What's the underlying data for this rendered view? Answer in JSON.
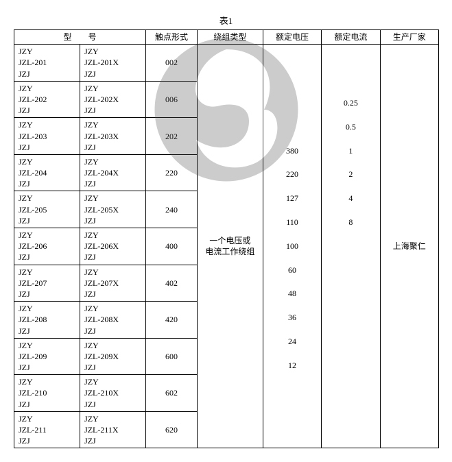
{
  "caption": "表1",
  "header": {
    "model": "型　　号",
    "contact": "触点形式",
    "winding": "绕组类型",
    "voltage": "额定电压",
    "current": "额定电流",
    "maker": "生产厂家"
  },
  "rows": [
    {
      "a": [
        "JZY",
        "JZL-201",
        "JZJ"
      ],
      "b": [
        "JZY",
        "JZL-201X",
        "JZJ"
      ],
      "contact": "002"
    },
    {
      "a": [
        "JZY",
        "JZL-202",
        "JZJ"
      ],
      "b": [
        "JZY",
        "JZL-202X",
        "JZJ"
      ],
      "contact": "006"
    },
    {
      "a": [
        "JZY",
        "JZL-203",
        "JZJ"
      ],
      "b": [
        "JZY",
        "JZL-203X",
        "JZJ"
      ],
      "contact": "202"
    },
    {
      "a": [
        "JZY",
        "JZL-204",
        "JZJ"
      ],
      "b": [
        "JZY",
        "JZL-204X",
        "JZJ"
      ],
      "contact": "220"
    },
    {
      "a": [
        "JZY",
        "JZL-205",
        "JZJ"
      ],
      "b": [
        "JZY",
        "JZL-205X",
        "JZJ"
      ],
      "contact": "240"
    },
    {
      "a": [
        "JZY",
        "JZL-206",
        "JZJ"
      ],
      "b": [
        "JZY",
        "JZL-206X",
        "JZJ"
      ],
      "contact": "400"
    },
    {
      "a": [
        "JZY",
        "JZL-207",
        "JZJ"
      ],
      "b": [
        "JZY",
        "JZL-207X",
        "JZJ"
      ],
      "contact": "402"
    },
    {
      "a": [
        "JZY",
        "JZL-208",
        "JZJ"
      ],
      "b": [
        "JZY",
        "JZL-208X",
        "JZJ"
      ],
      "contact": "420"
    },
    {
      "a": [
        "JZY",
        "JZL-209",
        "JZJ"
      ],
      "b": [
        "JZY",
        "JZL-209X",
        "JZJ"
      ],
      "contact": "600"
    },
    {
      "a": [
        "JZY",
        "JZL-210",
        "JZJ"
      ],
      "b": [
        "JZY",
        "JZL-210X",
        "JZJ"
      ],
      "contact": "602"
    },
    {
      "a": [
        "JZY",
        "JZL-211",
        "JZJ"
      ],
      "b": [
        "JZY",
        "JZL-211X",
        "JZJ"
      ],
      "contact": "620"
    }
  ],
  "winding_text": "一个电压或电流工作绕组",
  "voltage_lines": [
    "",
    "",
    "380",
    "220",
    "127",
    "110",
    "100",
    "60",
    "48",
    "36",
    "24",
    "12",
    ""
  ],
  "current_lines": [
    "0.25",
    "0.5",
    "1",
    "2",
    "4",
    "8",
    "",
    "",
    "",
    "",
    "",
    "",
    ""
  ],
  "maker_text": "上海聚仁",
  "watermark_colors": {
    "fill": "#4b4b4b"
  }
}
